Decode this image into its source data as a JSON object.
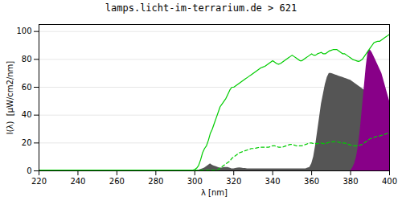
{
  "chart_data": {
    "type": "area",
    "title": "lamps.licht-im-terrarium.de > 621",
    "xlabel": "λ [nm]",
    "ylabel": "I(λ)  [μW/cm2/nm]",
    "xlim": [
      220,
      400
    ],
    "ylim": [
      0,
      105
    ],
    "xticks": [
      220,
      240,
      260,
      280,
      300,
      320,
      340,
      360,
      380,
      400
    ],
    "yticks": [
      0,
      20,
      40,
      60,
      80,
      100
    ],
    "grid": true,
    "x": [
      220,
      221,
      222,
      223,
      224,
      225,
      226,
      227,
      228,
      229,
      230,
      231,
      232,
      233,
      234,
      235,
      236,
      237,
      238,
      239,
      240,
      241,
      242,
      243,
      244,
      245,
      246,
      247,
      248,
      249,
      250,
      251,
      252,
      253,
      254,
      255,
      256,
      257,
      258,
      259,
      260,
      261,
      262,
      263,
      264,
      265,
      266,
      267,
      268,
      269,
      270,
      271,
      272,
      273,
      274,
      275,
      276,
      277,
      278,
      279,
      280,
      281,
      282,
      283,
      284,
      285,
      286,
      287,
      288,
      289,
      290,
      291,
      292,
      293,
      294,
      295,
      296,
      297,
      298,
      299,
      300,
      301,
      302,
      303,
      304,
      305,
      306,
      307,
      308,
      309,
      310,
      311,
      312,
      313,
      314,
      315,
      316,
      317,
      318,
      319,
      320,
      321,
      322,
      323,
      324,
      325,
      326,
      327,
      328,
      329,
      330,
      331,
      332,
      333,
      334,
      335,
      336,
      337,
      338,
      339,
      340,
      341,
      342,
      343,
      344,
      345,
      346,
      347,
      348,
      349,
      350,
      351,
      352,
      353,
      354,
      355,
      356,
      357,
      358,
      359,
      360,
      361,
      362,
      363,
      364,
      365,
      366,
      367,
      368,
      369,
      370,
      371,
      372,
      373,
      374,
      375,
      376,
      377,
      378,
      379,
      380,
      381,
      382,
      383,
      384,
      385,
      386,
      387,
      388,
      389,
      390,
      391,
      392,
      393,
      394,
      395,
      396,
      397,
      398,
      399,
      400
    ],
    "series": [
      {
        "type": "area",
        "color": "#555555",
        "values": [
          0,
          0,
          0,
          0,
          0,
          0,
          0,
          0,
          0,
          0,
          0,
          0,
          0,
          0,
          0,
          0,
          0,
          0,
          0,
          0,
          0,
          0,
          0,
          0,
          0,
          0,
          0,
          0,
          0,
          0,
          0,
          0,
          0,
          0,
          0,
          0,
          0,
          0,
          0,
          0,
          0,
          0,
          0,
          0,
          0,
          0,
          0,
          0,
          0,
          0,
          0,
          0,
          0,
          0,
          0,
          0,
          0,
          0,
          0,
          0,
          0,
          0,
          0,
          0,
          0,
          0,
          0,
          0,
          0,
          0,
          0,
          0,
          0,
          0,
          0,
          0,
          0,
          0,
          0,
          0,
          0.2,
          0.3,
          0.5,
          1.0,
          1.5,
          2.0,
          3.0,
          4.0,
          5.0,
          4.0,
          3.5,
          3.0,
          2.5,
          2.0,
          2.0,
          2.5,
          2.5,
          2.5,
          2.0,
          1.5,
          1.5,
          1.8,
          2.0,
          2.2,
          2.0,
          1.8,
          1.8,
          1.5,
          1.5,
          1.5,
          1.5,
          1.5,
          1.5,
          1.5,
          1.5,
          1.5,
          1.5,
          1.5,
          1.5,
          1.5,
          1.5,
          1.5,
          1.5,
          1.5,
          1.5,
          1.5,
          1.5,
          1.5,
          1.5,
          1.5,
          1.5,
          1.5,
          1.5,
          1.5,
          1.5,
          1.5,
          1.5,
          1.5,
          2.0,
          2.5,
          5.0,
          10.0,
          18.0,
          28.0,
          38.0,
          48.0,
          55.0,
          62.0,
          67.0,
          70.0,
          70.0,
          69.5,
          69.0,
          68.5,
          68.0,
          67.5,
          67.0,
          66.5,
          66.0,
          65.5,
          65.0,
          64.0,
          63.0,
          62.0,
          61.0,
          60.0,
          59.0,
          58.0,
          57.0,
          55.0,
          40.0,
          25.0,
          15.0,
          8.0,
          4.0,
          2.0,
          1.0,
          0.5,
          0.2,
          0.1,
          0.0
        ]
      },
      {
        "type": "area",
        "color": "#880088",
        "values": [
          0,
          0,
          0,
          0,
          0,
          0,
          0,
          0,
          0,
          0,
          0,
          0,
          0,
          0,
          0,
          0,
          0,
          0,
          0,
          0,
          0,
          0,
          0,
          0,
          0,
          0,
          0,
          0,
          0,
          0,
          0,
          0,
          0,
          0,
          0,
          0,
          0,
          0,
          0,
          0,
          0,
          0,
          0,
          0,
          0,
          0,
          0,
          0,
          0,
          0,
          0,
          0,
          0,
          0,
          0,
          0,
          0,
          0,
          0,
          0,
          0,
          0,
          0,
          0,
          0,
          0,
          0,
          0,
          0,
          0,
          0,
          0,
          0,
          0,
          0,
          0,
          0,
          0,
          0,
          0,
          0,
          0,
          0,
          0,
          0,
          0,
          0,
          0,
          0,
          0,
          0,
          0,
          0,
          0,
          0,
          0,
          0,
          0,
          0,
          0,
          0,
          0,
          0,
          0,
          0,
          0,
          0,
          0,
          0,
          0,
          0,
          0,
          0,
          0,
          0,
          0,
          0,
          0,
          0,
          0,
          0,
          0,
          0,
          0,
          0,
          0,
          0,
          0,
          0,
          0,
          0,
          0,
          0,
          0,
          0,
          0,
          0,
          0,
          0,
          0,
          0,
          0,
          0,
          0,
          0,
          0,
          0,
          0,
          0,
          0,
          0,
          0,
          0,
          0,
          0,
          0,
          0,
          0,
          0,
          0,
          0,
          2.0,
          5.0,
          10.0,
          18.0,
          30.0,
          45.0,
          60.0,
          75.0,
          86.0,
          87.0,
          85.0,
          82.0,
          79.0,
          76.0,
          73.0,
          70.0,
          65.0,
          60.0,
          55.0,
          50.0
        ]
      },
      {
        "type": "line",
        "color": "#00cc00",
        "line_style": "solid",
        "values": [
          0.5,
          0.5,
          0.5,
          0.5,
          0.5,
          0.5,
          0.5,
          0.5,
          0.5,
          0.5,
          0.5,
          0.5,
          0.5,
          0.5,
          0.5,
          0.5,
          0.5,
          0.5,
          0.5,
          0.5,
          0.5,
          0.5,
          0.5,
          0.5,
          0.5,
          0.5,
          0.5,
          0.5,
          0.5,
          0.5,
          0.5,
          0.5,
          0.5,
          0.5,
          0.5,
          0.5,
          0.5,
          0.5,
          0.5,
          0.5,
          0.5,
          0.5,
          0.5,
          0.5,
          0.5,
          0.5,
          0.5,
          0.5,
          0.5,
          0.5,
          0.5,
          0.5,
          0.5,
          0.5,
          0.5,
          0.5,
          0.5,
          0.5,
          0.5,
          0.5,
          0.5,
          0.5,
          0.5,
          0.5,
          0.5,
          0.5,
          0.5,
          0.5,
          0.5,
          0.5,
          0.5,
          0.5,
          0.5,
          0.5,
          0.5,
          0.5,
          0.5,
          0.5,
          0.5,
          0.5,
          1.0,
          2.0,
          4.0,
          8.0,
          13.0,
          16.0,
          18.0,
          22.0,
          27.0,
          30.0,
          34.0,
          38.0,
          42.0,
          46.0,
          48.0,
          50.0,
          52.0,
          55.0,
          58.0,
          60.0,
          60.0,
          61.0,
          62.0,
          63.0,
          64.0,
          65.0,
          66.0,
          67.0,
          68.0,
          69.0,
          70.0,
          71.0,
          72.0,
          73.0,
          74.0,
          74.5,
          75.0,
          76.0,
          77.0,
          78.0,
          79.0,
          78.0,
          77.0,
          76.5,
          77.0,
          78.0,
          79.0,
          80.0,
          81.0,
          82.0,
          83.0,
          82.0,
          81.0,
          80.0,
          79.0,
          79.0,
          80.0,
          81.0,
          82.0,
          83.0,
          84.0,
          83.0,
          83.0,
          84.0,
          84.5,
          85.0,
          84.0,
          84.0,
          85.0,
          86.0,
          86.5,
          87.0,
          87.0,
          87.0,
          86.0,
          85.0,
          84.0,
          84.0,
          83.0,
          82.0,
          81.0,
          80.0,
          79.5,
          79.0,
          78.5,
          79.0,
          80.0,
          82.0,
          84.0,
          86.0,
          88.0,
          90.0,
          92.0,
          92.5,
          93.0,
          93.0,
          94.0,
          95.0,
          96.0,
          97.0,
          98.0
        ]
      },
      {
        "type": "line",
        "color": "#00cc00",
        "line_style": "dashed",
        "values": [
          null,
          null,
          null,
          null,
          null,
          null,
          null,
          null,
          null,
          null,
          null,
          null,
          null,
          null,
          null,
          null,
          null,
          null,
          null,
          null,
          null,
          null,
          null,
          null,
          null,
          null,
          null,
          null,
          null,
          null,
          null,
          null,
          null,
          null,
          null,
          null,
          null,
          null,
          null,
          null,
          null,
          null,
          null,
          null,
          null,
          null,
          null,
          null,
          null,
          null,
          null,
          null,
          null,
          null,
          null,
          null,
          null,
          null,
          null,
          null,
          null,
          null,
          null,
          null,
          null,
          null,
          null,
          null,
          null,
          null,
          null,
          null,
          null,
          null,
          null,
          null,
          null,
          null,
          null,
          null,
          0.5,
          0.5,
          0.5,
          0.5,
          0.5,
          0.5,
          0.5,
          0.5,
          0.5,
          0.5,
          0.5,
          0.5,
          1.0,
          2.0,
          3.0,
          4.0,
          5.0,
          6.0,
          7.0,
          9.0,
          10.0,
          11.0,
          12.0,
          13.0,
          13.5,
          14.0,
          14.5,
          15.0,
          15.5,
          16.0,
          16.0,
          16.2,
          16.5,
          16.8,
          17.0,
          17.0,
          17.0,
          17.0,
          17.0,
          17.5,
          18.0,
          18.0,
          17.5,
          17.0,
          17.0,
          17.0,
          17.5,
          18.0,
          18.5,
          19.0,
          19.0,
          18.5,
          18.0,
          18.0,
          18.0,
          18.0,
          18.5,
          19.0,
          19.5,
          20.0,
          20.0,
          19.5,
          19.5,
          19.5,
          20.0,
          20.0,
          19.5,
          19.5,
          20.0,
          20.5,
          20.5,
          21.0,
          21.0,
          21.0,
          20.5,
          20.0,
          20.0,
          20.0,
          19.5,
          19.0,
          18.5,
          18.0,
          18.0,
          18.0,
          18.0,
          18.5,
          19.0,
          20.0,
          21.0,
          22.0,
          23.0,
          23.5,
          24.0,
          24.5,
          25.0,
          25.0,
          25.5,
          26.0,
          26.5,
          27.0,
          28.0
        ]
      }
    ]
  }
}
